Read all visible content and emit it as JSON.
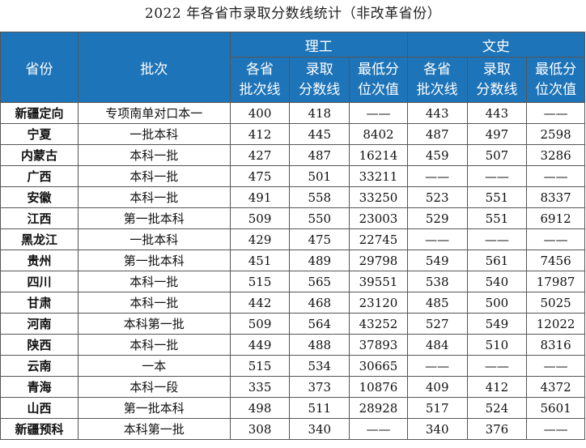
{
  "title": "2022 年各省市录取分数线统计（非改革省份）",
  "headers": {
    "province": "省份",
    "batch": "批次",
    "science": "理工",
    "arts": "文史",
    "sub": [
      "各省\n批次线",
      "录取\n分数线",
      "最低分\n位次值",
      "各省\n批次线",
      "录取\n分数线",
      "最低分\n位次值"
    ]
  },
  "rows": [
    {
      "province": "新疆定向",
      "batch": "专项南单对口本一",
      "s_line": "400",
      "s_score": "418",
      "s_rank": "——",
      "a_line": "443",
      "a_score": "443",
      "a_rank": "——"
    },
    {
      "province": "宁夏",
      "batch": "一批本科",
      "s_line": "412",
      "s_score": "445",
      "s_rank": "8402",
      "a_line": "487",
      "a_score": "497",
      "a_rank": "2598"
    },
    {
      "province": "内蒙古",
      "batch": "本科一批",
      "s_line": "427",
      "s_score": "487",
      "s_rank": "16214",
      "a_line": "459",
      "a_score": "507",
      "a_rank": "3286"
    },
    {
      "province": "广西",
      "batch": "本科一批",
      "s_line": "475",
      "s_score": "501",
      "s_rank": "33211",
      "a_line": "——",
      "a_score": "——",
      "a_rank": "——"
    },
    {
      "province": "安徽",
      "batch": "本科一批",
      "s_line": "491",
      "s_score": "558",
      "s_rank": "33250",
      "a_line": "523",
      "a_score": "551",
      "a_rank": "8337"
    },
    {
      "province": "江西",
      "batch": "第一批本科",
      "s_line": "509",
      "s_score": "550",
      "s_rank": "23003",
      "a_line": "529",
      "a_score": "551",
      "a_rank": "6912"
    },
    {
      "province": "黑龙江",
      "batch": "一批本科",
      "s_line": "429",
      "s_score": "475",
      "s_rank": "22745",
      "a_line": "——",
      "a_score": "——",
      "a_rank": "——"
    },
    {
      "province": "贵州",
      "batch": "第一批本科",
      "s_line": "451",
      "s_score": "489",
      "s_rank": "29798",
      "a_line": "549",
      "a_score": "561",
      "a_rank": "7456"
    },
    {
      "province": "四川",
      "batch": "本科一批",
      "s_line": "515",
      "s_score": "565",
      "s_rank": "39551",
      "a_line": "538",
      "a_score": "540",
      "a_rank": "17987"
    },
    {
      "province": "甘肃",
      "batch": "本科一批",
      "s_line": "442",
      "s_score": "468",
      "s_rank": "23120",
      "a_line": "485",
      "a_score": "500",
      "a_rank": "5025"
    },
    {
      "province": "河南",
      "batch": "本科第一批",
      "s_line": "509",
      "s_score": "564",
      "s_rank": "43252",
      "a_line": "527",
      "a_score": "549",
      "a_rank": "12022"
    },
    {
      "province": "陕西",
      "batch": "本科一批",
      "s_line": "449",
      "s_score": "488",
      "s_rank": "37893",
      "a_line": "484",
      "a_score": "510",
      "a_rank": "8316"
    },
    {
      "province": "云南",
      "batch": "一本",
      "s_line": "515",
      "s_score": "534",
      "s_rank": "30665",
      "a_line": "——",
      "a_score": "——",
      "a_rank": "——"
    },
    {
      "province": "青海",
      "batch": "本科一段",
      "s_line": "335",
      "s_score": "373",
      "s_rank": "10876",
      "a_line": "409",
      "a_score": "412",
      "a_rank": "4372"
    },
    {
      "province": "山西",
      "batch": "第一批本科",
      "s_line": "498",
      "s_score": "511",
      "s_rank": "28928",
      "a_line": "517",
      "a_score": "524",
      "a_rank": "5601"
    },
    {
      "province": "新疆预科",
      "batch": "本科第一批",
      "s_line": "308",
      "s_score": "340",
      "s_rank": "——",
      "a_line": "340",
      "a_score": "376",
      "a_rank": "——"
    }
  ]
}
